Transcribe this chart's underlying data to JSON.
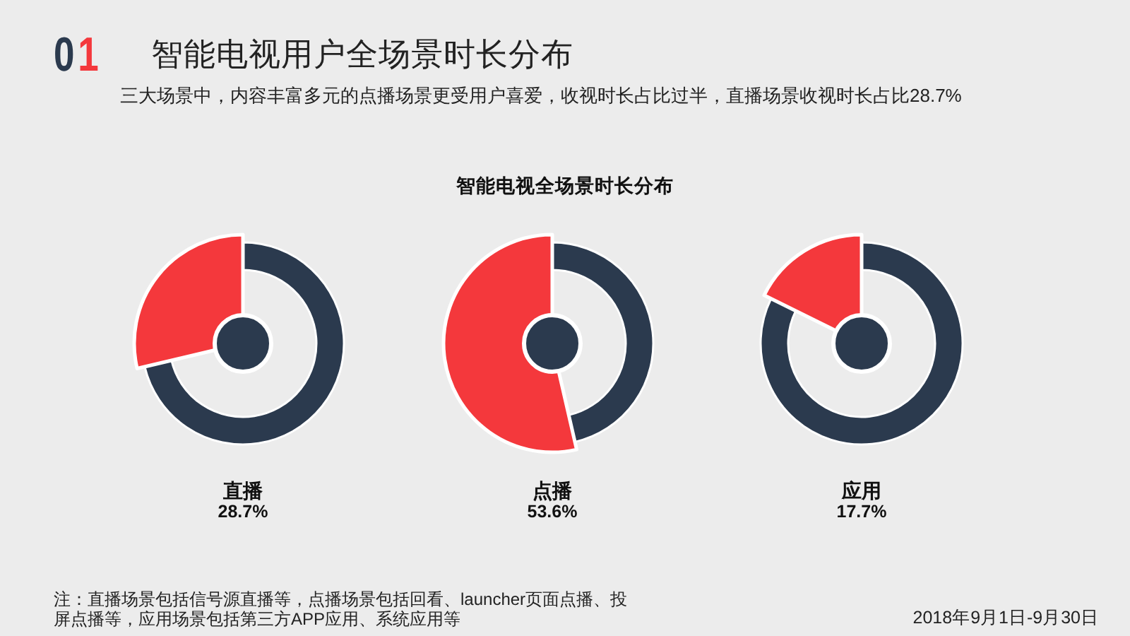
{
  "chart_data": [
    {
      "type": "other",
      "title": "智能电视用户全场景时长分布",
      "subtitle": "三大场景中，内容丰富多元的点播场景更受用户喜爱，收视时长占比过半，直播场景收视时长占比28.7%",
      "annotations": [
        "01",
        "智能电视全场景时长分布",
        "注：直播场景包括信号源直播等，点播场景包括回看、launcher页面点播、投屏点播等，应用场景包括第三方APP应用、系统应用等",
        "2018年9月1日-9月30日"
      ]
    },
    {
      "type": "donut",
      "title": "直播",
      "subtitle": "28.7%",
      "categories": [
        null,
        null
      ],
      "values": [
        28.7,
        71.3
      ],
      "colors": [
        "#f4383c",
        "#2b3a4e"
      ]
    },
    {
      "type": "donut",
      "title": "点播",
      "subtitle": "53.6%",
      "categories": [
        null,
        null
      ],
      "values": [
        53.6,
        46.4
      ],
      "colors": [
        "#f4383c",
        "#2b3a4e"
      ]
    },
    {
      "type": "donut",
      "title": "应用",
      "subtitle": "17.7%",
      "categories": [
        null,
        null
      ],
      "values": [
        17.7,
        82.3
      ],
      "colors": [
        "#f4383c",
        "#2b3a4e"
      ]
    }
  ]
}
